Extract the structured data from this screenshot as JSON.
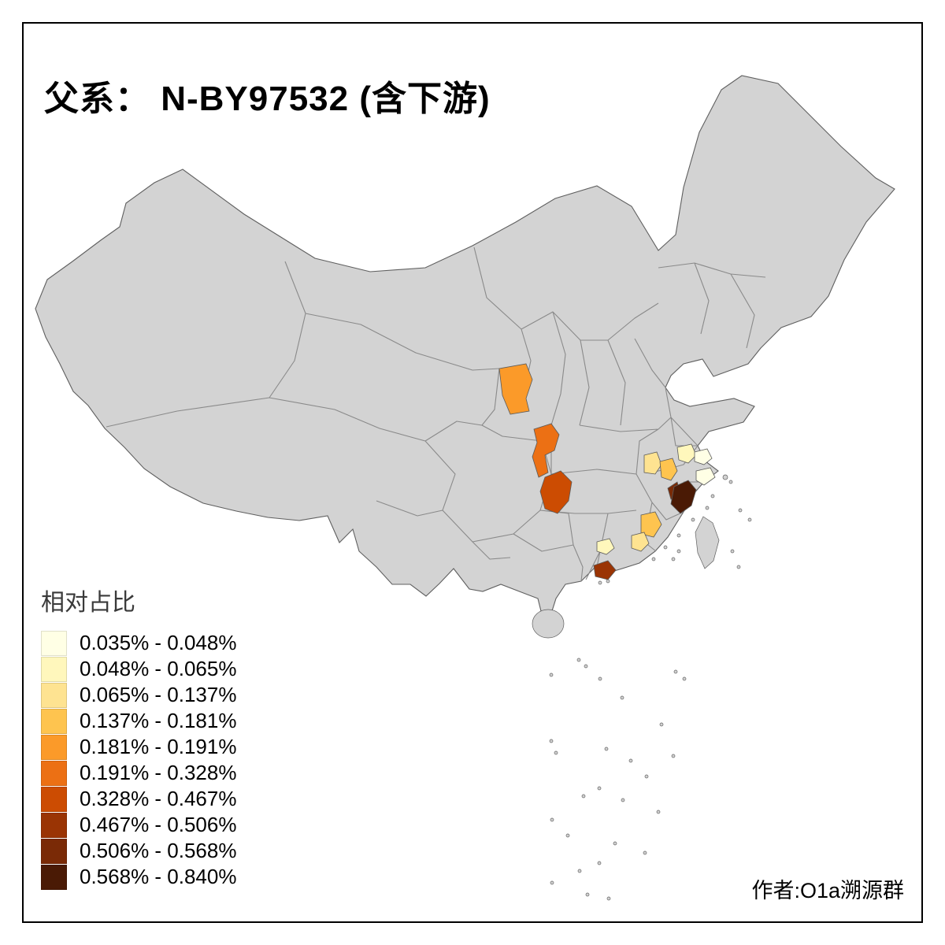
{
  "title": "父系： N-BY97532 (含下游)",
  "credit": "作者:O1a溯源群",
  "legend": {
    "title": "相对占比",
    "items": [
      {
        "label": "0.035% - 0.048%",
        "color": "#FFFFE5"
      },
      {
        "label": "0.048% - 0.065%",
        "color": "#FFF7BC"
      },
      {
        "label": "0.065% - 0.137%",
        "color": "#FEE391"
      },
      {
        "label": "0.137% - 0.181%",
        "color": "#FEC44F"
      },
      {
        "label": "0.181% - 0.191%",
        "color": "#FB9A29"
      },
      {
        "label": "0.191% - 0.328%",
        "color": "#EC7014"
      },
      {
        "label": "0.328% - 0.467%",
        "color": "#CC4C02"
      },
      {
        "label": "0.467% - 0.506%",
        "color": "#9A3404"
      },
      {
        "label": "0.506% - 0.568%",
        "color": "#7A2A06"
      },
      {
        "label": "0.568% - 0.840%",
        "color": "#4A1A05"
      }
    ]
  },
  "colors": {
    "background": "#FFFFFF",
    "frame": "#000000",
    "land": "#D3D3D3",
    "coast": "#5F5F5F",
    "province_border": "#8A8A8A",
    "region_stroke": "#5A5A5A"
  },
  "map": {
    "name": "china-prefecture-choropleth",
    "regions": [
      {
        "id": "r1",
        "class_index": 4
      },
      {
        "id": "r2",
        "class_index": 5
      },
      {
        "id": "r3",
        "class_index": 6
      },
      {
        "id": "r4",
        "class_index": 2
      },
      {
        "id": "r5",
        "class_index": 3
      },
      {
        "id": "r6",
        "class_index": 1
      },
      {
        "id": "r7",
        "class_index": 0
      },
      {
        "id": "r8",
        "class_index": 0
      },
      {
        "id": "r9b",
        "class_index": 8
      },
      {
        "id": "r9",
        "class_index": 9
      },
      {
        "id": "r10",
        "class_index": 3
      },
      {
        "id": "r11",
        "class_index": 2
      },
      {
        "id": "r12",
        "class_index": 1
      },
      {
        "id": "r13",
        "class_index": 7
      }
    ]
  }
}
